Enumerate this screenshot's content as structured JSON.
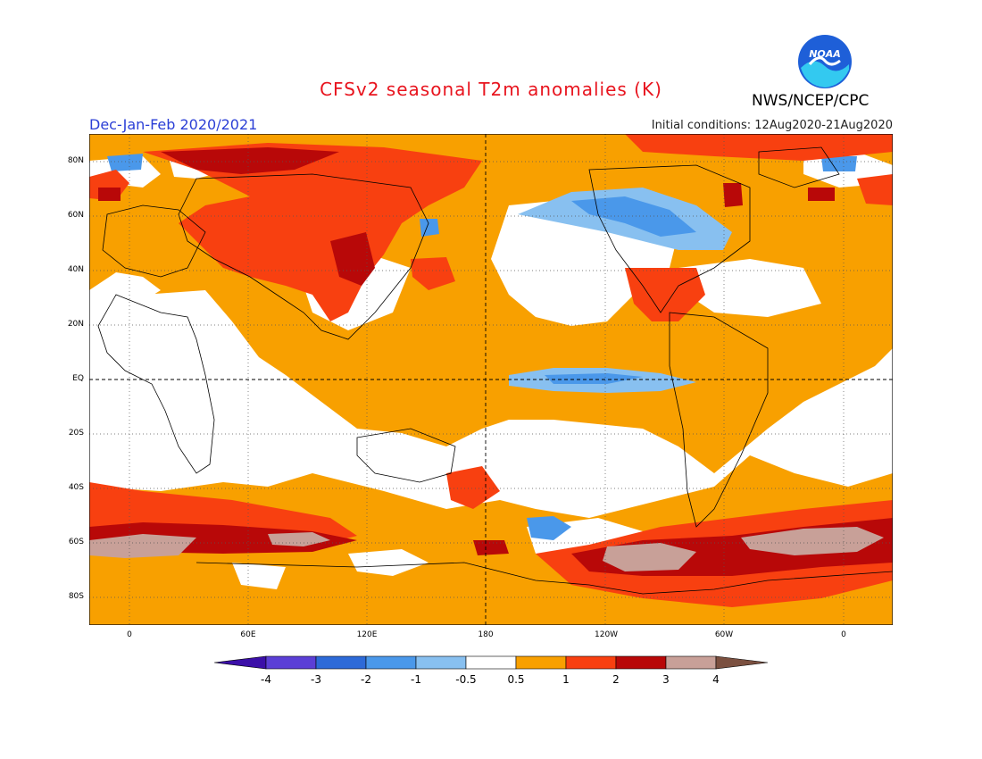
{
  "header": {
    "title": "CFSv2 seasonal T2m anomalies (K)",
    "brand": "NWS/NCEP/CPC",
    "logo_text": "NOAA",
    "season": "Dec-Jan-Feb 2020/2021",
    "initial_conditions": "Initial conditions: 12Aug2020-21Aug2020"
  },
  "colors": {
    "title": "#e8141e",
    "season": "#2b3fd6",
    "logo_blue": "#1e5fd8",
    "logo_cyan": "#33c9f0"
  },
  "map": {
    "projection": "equirectangular",
    "lon_range": [
      -20,
      380
    ],
    "lat_range": [
      -90,
      90
    ],
    "grid": "dashed",
    "lat_ticks": [
      "80N",
      "60N",
      "40N",
      "20N",
      "EQ",
      "20S",
      "40S",
      "60S",
      "80S"
    ],
    "lon_ticks": [
      "0",
      "60E",
      "120E",
      "180",
      "120W",
      "60W",
      "0"
    ],
    "legend": "bottom"
  },
  "colorbar": {
    "labels": [
      "-4",
      "-3",
      "-2",
      "-1",
      "-0.5",
      "0.5",
      "1",
      "2",
      "3",
      "4"
    ],
    "colors": [
      "#3b0fa8",
      "#5b3fd6",
      "#2d6ad8",
      "#4a98ea",
      "#88c0f0",
      "#ffffff",
      "#f8a000",
      "#f84010",
      "#b80808",
      "#c8a098",
      "#7b5040"
    ]
  }
}
